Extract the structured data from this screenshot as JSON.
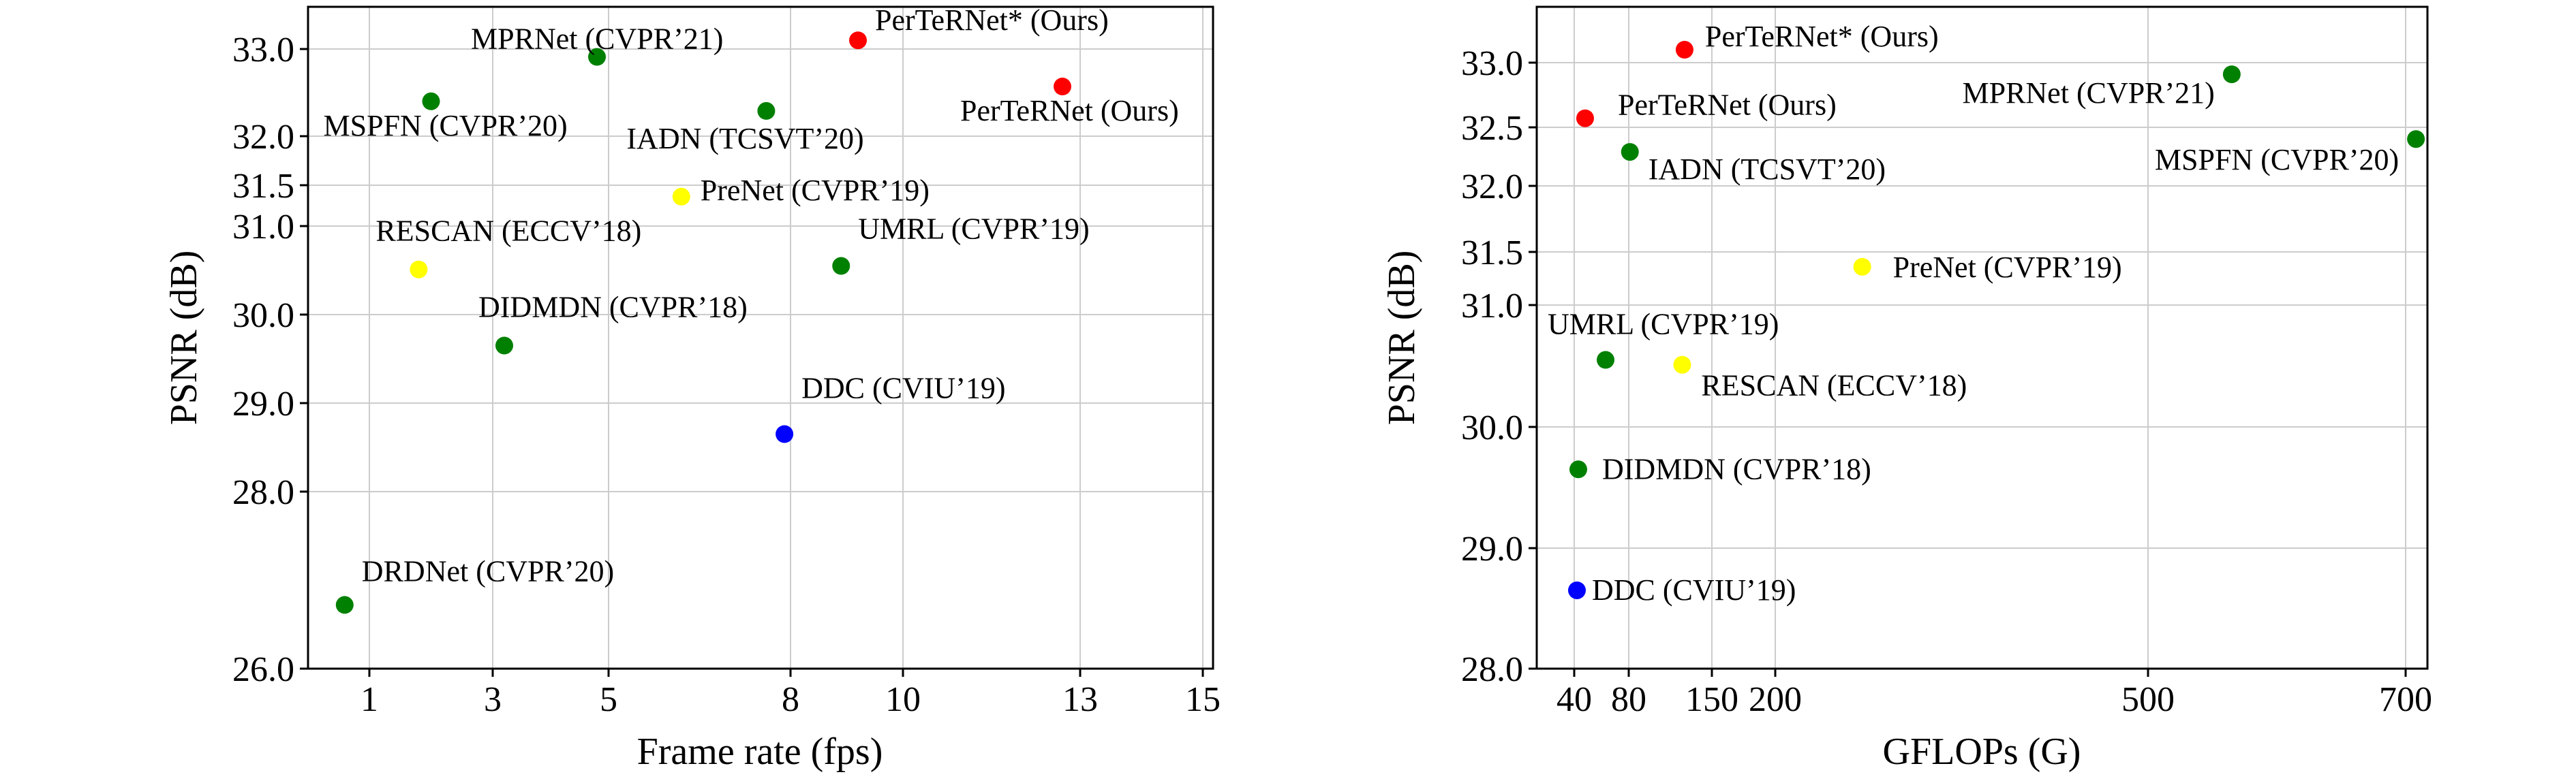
{
  "chart_data": [
    {
      "type": "scatter",
      "xlabel": "Frame rate (fps)",
      "ylabel": "PSNR (dB)",
      "x_ticks": [
        {
          "value": 1,
          "label": "1"
        },
        {
          "value": 3,
          "label": "3"
        },
        {
          "value": 5,
          "label": "5"
        },
        {
          "value": 8,
          "label": "8"
        },
        {
          "value": 10,
          "label": "10"
        },
        {
          "value": 13,
          "label": "13"
        },
        {
          "value": 15,
          "label": "15"
        }
      ],
      "y_ticks": [
        {
          "value": 26.0,
          "label": "26.0"
        },
        {
          "value": 28.0,
          "label": "28.0"
        },
        {
          "value": 29.0,
          "label": "29.0"
        },
        {
          "value": 30.0,
          "label": "30.0"
        },
        {
          "value": 31.0,
          "label": "31.0"
        },
        {
          "value": 31.5,
          "label": "31.5"
        },
        {
          "value": 32.0,
          "label": "32.0"
        },
        {
          "value": 33.0,
          "label": "33.0"
        }
      ],
      "grid": true,
      "points": [
        {
          "label": "MPRNet (CVPR’21)",
          "x": 4.8,
          "y": 32.91,
          "color": "#008000"
        },
        {
          "label": "PerTeRNet* (Ours)",
          "x": 9.2,
          "y": 33.1,
          "color": "#ff0000"
        },
        {
          "label": "MSPFN (CVPR’20)",
          "x": 2.0,
          "y": 32.4,
          "color": "#008000"
        },
        {
          "label": "IADN (TCSVT’20)",
          "x": 7.6,
          "y": 32.29,
          "color": "#008000"
        },
        {
          "label": "PerTeRNet (Ours)",
          "x": 12.7,
          "y": 32.57,
          "color": "#ff0000"
        },
        {
          "label": "PreNet (CVPR’19)",
          "x": 6.2,
          "y": 31.36,
          "color": "#ffff00"
        },
        {
          "label": "RESCAN (ECCV’18)",
          "x": 1.8,
          "y": 30.51,
          "color": "#ffff00"
        },
        {
          "label": "UMRL (CVPR’19)",
          "x": 8.9,
          "y": 30.55,
          "color": "#008000"
        },
        {
          "label": "DIDMDN (CVPR’18)",
          "x": 3.2,
          "y": 29.65,
          "color": "#008000"
        },
        {
          "label": "DDC (CVIU’19)",
          "x": 7.9,
          "y": 28.65,
          "color": "#0000ff"
        },
        {
          "label": "DRDNet (CVPR’20)",
          "x": 0.6,
          "y": 26.72,
          "color": "#008000"
        }
      ]
    },
    {
      "type": "scatter",
      "xlabel": "GFLOPs (G)",
      "ylabel": "PSNR (dB)",
      "x_ticks": [
        {
          "value": 40,
          "label": "40"
        },
        {
          "value": 80,
          "label": "80"
        },
        {
          "value": 150,
          "label": "150"
        },
        {
          "value": 200,
          "label": "200"
        },
        {
          "value": 500,
          "label": "500"
        },
        {
          "value": 700,
          "label": "700"
        }
      ],
      "y_ticks": [
        {
          "value": 28.0,
          "label": "28.0"
        },
        {
          "value": 29.0,
          "label": "29.0"
        },
        {
          "value": 30.0,
          "label": "30.0"
        },
        {
          "value": 31.0,
          "label": "31.0"
        },
        {
          "value": 31.5,
          "label": "31.5"
        },
        {
          "value": 32.0,
          "label": "32.0"
        },
        {
          "value": 32.5,
          "label": "32.5"
        },
        {
          "value": 33.0,
          "label": "33.0"
        }
      ],
      "grid": true,
      "points": [
        {
          "label": "PerTeRNet* (Ours)",
          "x": 127,
          "y": 33.1,
          "color": "#ff0000"
        },
        {
          "label": "MPRNet (CVPR’21)",
          "x": 565,
          "y": 32.91,
          "color": "#008000"
        },
        {
          "label": "PerTeRNet (Ours)",
          "x": 48,
          "y": 32.57,
          "color": "#ff0000"
        },
        {
          "label": "MSPFN (CVPR’20)",
          "x": 708,
          "y": 32.4,
          "color": "#008000"
        },
        {
          "label": "IADN (TCSVT’20)",
          "x": 81,
          "y": 32.29,
          "color": "#008000"
        },
        {
          "label": "PreNet (CVPR’19)",
          "x": 270,
          "y": 31.36,
          "color": "#ffff00"
        },
        {
          "label": "UMRL (CVPR’19)",
          "x": 63,
          "y": 30.55,
          "color": "#008000"
        },
        {
          "label": "RESCAN (ECCV’18)",
          "x": 125,
          "y": 30.51,
          "color": "#ffff00"
        },
        {
          "label": "DIDMDN (CVPR’18)",
          "x": 43,
          "y": 29.65,
          "color": "#008000"
        },
        {
          "label": "DDC (CVIU’19)",
          "x": 42,
          "y": 28.65,
          "color": "#0000ff"
        }
      ]
    }
  ]
}
